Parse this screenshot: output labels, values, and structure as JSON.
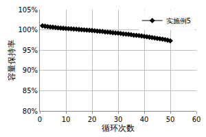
{
  "chart_data": {
    "type": "line",
    "x_label": "循环次数",
    "y_label": "容量保持率",
    "x": [
      1,
      2,
      3,
      4,
      5,
      6,
      7,
      8,
      9,
      10,
      11,
      12,
      13,
      14,
      15,
      16,
      17,
      18,
      19,
      20,
      21,
      22,
      23,
      24,
      25,
      26,
      27,
      28,
      29,
      30,
      31,
      32,
      33,
      34,
      35,
      36,
      37,
      38,
      39,
      40,
      41,
      42,
      43,
      44,
      45,
      46,
      47,
      48,
      49,
      50
    ],
    "series": [
      {
        "name": "实施例5",
        "color": "#000000",
        "marker": "diamond",
        "line_style": "solid",
        "values": [
          101.0,
          100.9,
          100.8,
          100.7,
          100.65,
          100.6,
          100.5,
          100.45,
          100.4,
          100.35,
          100.3,
          100.25,
          100.2,
          100.15,
          100.1,
          100.05,
          100.0,
          99.95,
          99.9,
          99.85,
          99.8,
          99.7,
          99.65,
          99.6,
          99.5,
          99.45,
          99.4,
          99.3,
          99.25,
          99.2,
          99.1,
          99.0,
          98.95,
          98.9,
          98.8,
          98.7,
          98.65,
          98.6,
          98.5,
          98.4,
          98.3,
          98.2,
          98.1,
          98.0,
          97.9,
          97.8,
          97.7,
          97.6,
          97.45,
          97.3
        ]
      }
    ],
    "xlim": [
      0,
      60
    ],
    "xticks": [
      0,
      10,
      20,
      30,
      40,
      50,
      60
    ],
    "ylim": [
      80,
      105
    ],
    "yticks": [
      {
        "value": 80,
        "label": "80%"
      },
      {
        "value": 85,
        "label": "85%"
      },
      {
        "value": 90,
        "label": "90%"
      },
      {
        "value": 95,
        "label": "95%"
      },
      {
        "value": 100,
        "label": "100%"
      },
      {
        "value": 105,
        "label": "105%"
      }
    ],
    "grid": true,
    "legend": "upper right"
  }
}
